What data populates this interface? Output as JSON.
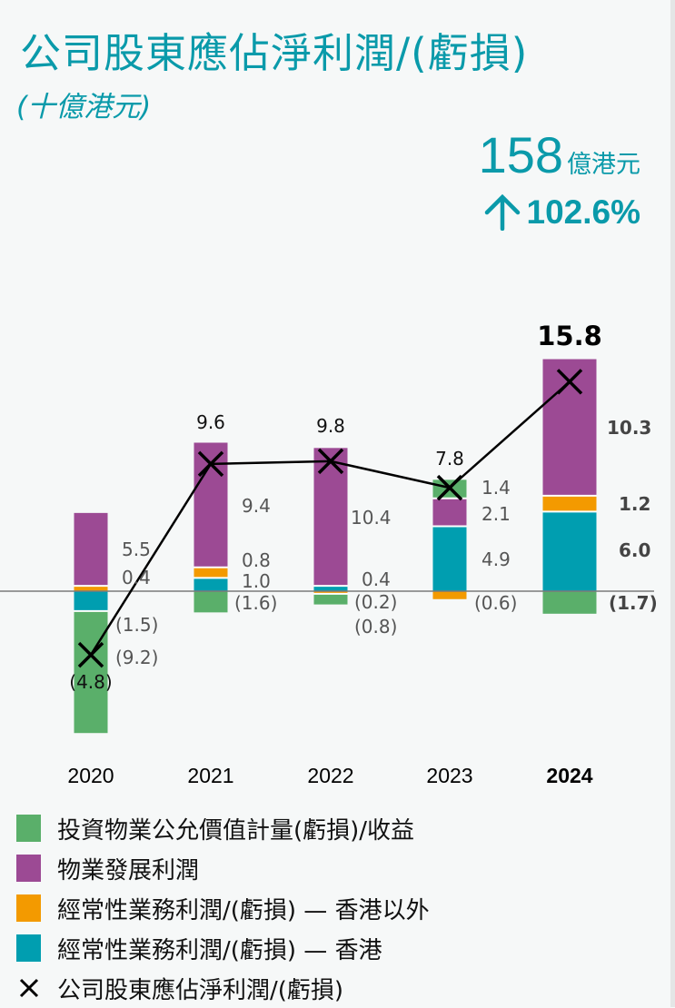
{
  "header": {
    "title": "公司股東應佔淨利潤/(虧損)",
    "subtitle": "(十億港元)"
  },
  "kpi": {
    "value": "158",
    "unit": "億港元",
    "change_icon": "arrow-up-icon",
    "change": "102.6%"
  },
  "colors": {
    "accent": "#0a9aaa",
    "investment": "#5aaf6a",
    "development": "#9c4a94",
    "recurring_outside_hk": "#f39a00",
    "recurring_hk": "#009eb0",
    "net": "#000000"
  },
  "chart_data": {
    "type": "bar",
    "subtype": "stacked-bar-with-line",
    "title": "公司股東應佔淨利潤/(虧損)",
    "subtitle": "(十億港元)",
    "categories": [
      "2020",
      "2021",
      "2022",
      "2023",
      "2024"
    ],
    "highlight_category": "2024",
    "series": [
      {
        "name": "投資物業公允價值計量(虧損)/收益",
        "key": "investment",
        "values": [
          -9.2,
          -1.6,
          -0.8,
          1.4,
          -1.7
        ],
        "labels": [
          "(9.2)",
          "(1.6)",
          "(0.8)",
          "1.4",
          "(1.7)"
        ]
      },
      {
        "name": "物業發展利潤",
        "key": "development",
        "values": [
          5.5,
          9.4,
          10.4,
          2.1,
          10.3
        ],
        "labels": [
          "5.5",
          "9.4",
          "10.4",
          "2.1",
          "10.3"
        ]
      },
      {
        "name": "經常性業務利潤/(虧損) — 香港以外",
        "key": "recurring_outside_hk",
        "values": [
          0.4,
          0.8,
          -0.2,
          -0.6,
          1.2
        ],
        "labels": [
          "0.4",
          "0.8",
          "(0.2)",
          "(0.6)",
          "1.2"
        ]
      },
      {
        "name": "經常性業務利潤/(虧損) — 香港",
        "key": "recurring_hk",
        "values": [
          -1.5,
          1.0,
          0.4,
          4.9,
          6.0
        ],
        "labels": [
          "(1.5)",
          "1.0",
          "0.4",
          "4.9",
          "6.0"
        ]
      }
    ],
    "line": {
      "name": "公司股東應佔淨利潤/(虧損)",
      "values": [
        -4.8,
        9.6,
        9.8,
        7.8,
        15.8
      ],
      "labels": [
        "(4.8)",
        "9.6",
        "9.8",
        "7.8",
        "15.8"
      ]
    },
    "xlabel": "",
    "ylabel": "",
    "ylim": [
      -11,
      18
    ],
    "grid": false,
    "legend_position": "bottom"
  },
  "legend": [
    {
      "label": "投資物業公允價值計量(虧損)/收益",
      "key": "investment"
    },
    {
      "label": "物業發展利潤",
      "key": "development"
    },
    {
      "label": "經常性業務利潤/(虧損) — 香港以外",
      "key": "recurring_outside_hk"
    },
    {
      "label": "經常性業務利潤/(虧損) — 香港",
      "key": "recurring_hk"
    },
    {
      "label": "公司股東應佔淨利潤/(虧損)",
      "key": "net"
    }
  ]
}
